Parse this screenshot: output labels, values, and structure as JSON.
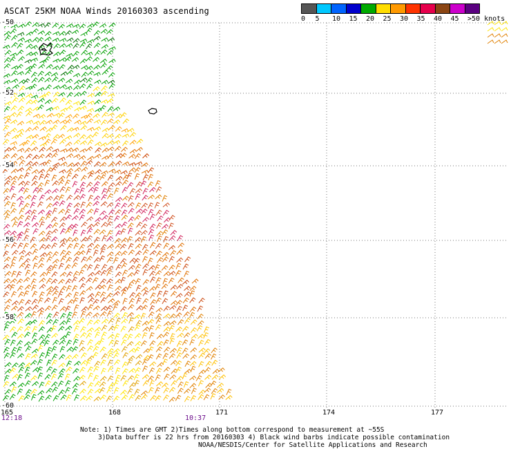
{
  "title": "ASCAT 25KM NOAA Winds 20160303 ascending",
  "speed_scale": {
    "labels": [
      "0",
      "5",
      "10",
      "15",
      "20",
      "25",
      "30",
      "35",
      "40",
      "45",
      ">50 knots"
    ],
    "colors": [
      "#555555",
      "#00c8ff",
      "#0064ff",
      "#0000cc",
      "#00aa00",
      "#ffdd00",
      "#ff9900",
      "#ff3300",
      "#e6004c",
      "#8b4513",
      "#cc00cc",
      "#5a0080"
    ]
  },
  "latitudes": [
    "-50",
    "-52",
    "-54",
    "-56",
    "-58",
    "-60"
  ],
  "longitudes": [
    "165",
    "168",
    "171",
    "174",
    "177"
  ],
  "time_labels": [
    "12:18",
    "10:37"
  ],
  "notes": [
    "Note: 1) Times are GMT 2)Times along bottom correspond to measurement at ~55S",
    "3)Data buffer is 22 hrs from 20160303 4) Black wind barbs indicate possible contamination",
    "NOAA/NESDIS/Center for Satellite Applications and Research"
  ]
}
